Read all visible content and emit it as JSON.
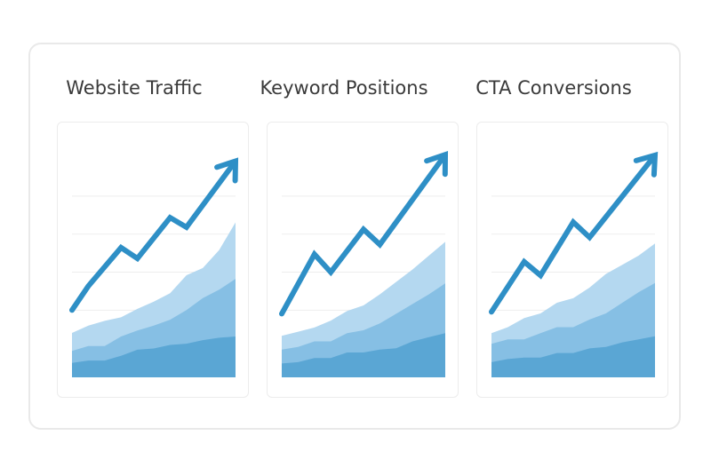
{
  "colors": {
    "area_light": "#b4d8f0",
    "area_mid": "#86bfe4",
    "area_dark": "#5aa6d4",
    "trend": "#2e8fc6",
    "grid": "#eeeeee"
  },
  "chart_data": [
    {
      "type": "area",
      "title": "Website Traffic",
      "x": [
        0,
        1,
        2,
        3,
        4,
        5,
        6,
        7,
        8,
        9,
        10
      ],
      "series": [
        {
          "values": [
            1.2,
            1.4,
            1.4,
            1.8,
            2.3,
            2.4,
            2.7,
            2.8,
            3.1,
            3.3,
            3.4
          ]
        },
        {
          "values": [
            2.2,
            2.6,
            2.6,
            3.4,
            3.9,
            4.3,
            4.8,
            5.6,
            6.6,
            7.3,
            8.2
          ]
        },
        {
          "values": [
            3.7,
            4.3,
            4.7,
            5.0,
            5.7,
            6.3,
            7.0,
            8.5,
            9.1,
            10.6,
            12.9
          ]
        }
      ],
      "trend": {
        "x": [
          0,
          1,
          3,
          4,
          6,
          7,
          10
        ],
        "y": [
          5.6,
          7.6,
          10.8,
          9.9,
          13.3,
          12.5,
          18.0
        ]
      },
      "ylim": [
        0,
        19
      ]
    },
    {
      "type": "area",
      "title": "Keyword Positions",
      "x": [
        0,
        1,
        2,
        3,
        4,
        5,
        6,
        7,
        8,
        9,
        10
      ],
      "series": [
        {
          "values": [
            1.0,
            1.1,
            1.4,
            1.4,
            1.8,
            1.8,
            2.0,
            2.1,
            2.6,
            2.9,
            3.2
          ]
        },
        {
          "values": [
            2.0,
            2.2,
            2.6,
            2.6,
            3.2,
            3.4,
            3.9,
            4.6,
            5.3,
            6.0,
            6.8
          ]
        },
        {
          "values": [
            3.0,
            3.3,
            3.6,
            4.1,
            4.8,
            5.2,
            6.0,
            6.9,
            7.8,
            8.8,
            9.8
          ]
        }
      ],
      "trend": {
        "x": [
          0,
          2,
          3,
          5,
          6,
          10
        ],
        "y": [
          4.6,
          8.9,
          7.6,
          10.7,
          9.6,
          16.1
        ]
      },
      "ylim": [
        0,
        16.5
      ]
    },
    {
      "type": "area",
      "title": "CTA Conversions",
      "x": [
        0,
        1,
        2,
        3,
        4,
        5,
        6,
        7,
        8,
        9,
        10
      ],
      "series": [
        {
          "values": [
            1.0,
            1.2,
            1.3,
            1.3,
            1.6,
            1.6,
            1.9,
            2.0,
            2.3,
            2.5,
            2.7
          ]
        },
        {
          "values": [
            2.2,
            2.5,
            2.5,
            2.9,
            3.3,
            3.3,
            3.8,
            4.2,
            4.9,
            5.6,
            6.2
          ]
        },
        {
          "values": [
            2.9,
            3.3,
            3.9,
            4.2,
            4.9,
            5.2,
            5.9,
            6.8,
            7.4,
            8.0,
            8.8
          ]
        }
      ],
      "trend": {
        "x": [
          0,
          2,
          3,
          5,
          6,
          10
        ],
        "y": [
          4.3,
          7.6,
          6.7,
          10.2,
          9.2,
          14.6
        ]
      },
      "ylim": [
        0,
        15
      ]
    }
  ]
}
